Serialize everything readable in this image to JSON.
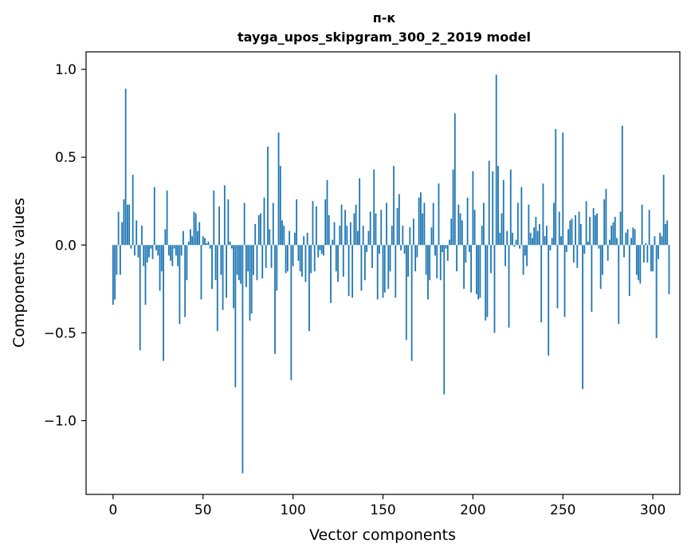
{
  "chart_data": {
    "type": "bar",
    "title": "п-к",
    "subtitle": "tayga_upos_skipgram_300_2_2019 model",
    "xlabel": "Vector components",
    "ylabel": "Components values",
    "xlim": [
      -15,
      315
    ],
    "ylim": [
      -1.42,
      1.1
    ],
    "xticks": [
      0,
      50,
      100,
      150,
      200,
      250,
      300
    ],
    "xtick_labels": [
      "0",
      "50",
      "100",
      "150",
      "200",
      "250",
      "300"
    ],
    "yticks": [
      -1.0,
      -0.5,
      0.0,
      0.5,
      1.0
    ],
    "ytick_labels": [
      "−1.0",
      "−0.5",
      "0.0",
      "0.5",
      "1.0"
    ],
    "grid": false,
    "bar_color": "#1f77b4",
    "series": [
      {
        "values": [
          -0.34,
          -0.31,
          -0.17,
          0.19,
          -0.17,
          0.13,
          0.26,
          0.89,
          0.23,
          0.23,
          -0.02,
          0.4,
          -0.06,
          0.14,
          -0.07,
          -0.6,
          0.11,
          -0.12,
          -0.34,
          -0.1,
          -0.07,
          -0.02,
          -0.08,
          0.33,
          -0.03,
          -0.06,
          -0.26,
          -0.15,
          -0.66,
          0.09,
          0.31,
          -0.06,
          -0.09,
          -0.12,
          -0.02,
          -0.06,
          -0.12,
          -0.45,
          -0.06,
          0.08,
          -0.41,
          -0.2,
          0.02,
          0.09,
          0.05,
          0.19,
          0.18,
          0.08,
          0.13,
          -0.31,
          0.05,
          0.04,
          0.01,
          0.02,
          -0.02,
          -0.25,
          0.31,
          -0.2,
          -0.49,
          0.22,
          -0.17,
          -0.37,
          0.34,
          -0.3,
          0.26,
          0.02,
          -0.02,
          -0.36,
          -0.81,
          -0.17,
          -0.2,
          -0.22,
          -1.3,
          0.24,
          -0.24,
          -0.15,
          -0.43,
          -0.39,
          -0.17,
          0.12,
          -0.2,
          0.17,
          0.18,
          -0.19,
          0.27,
          -0.13,
          0.56,
          0.09,
          -0.13,
          0.24,
          -0.62,
          -0.26,
          0.64,
          0.45,
          0.14,
          0.11,
          -0.16,
          -0.15,
          0.08,
          -0.77,
          -0.12,
          0.07,
          0.26,
          -0.09,
          -0.15,
          -0.18,
          0.05,
          -0.21,
          0.07,
          -0.49,
          -0.16,
          0.25,
          -0.15,
          0.22,
          -0.07,
          -0.03,
          -0.05,
          -0.06,
          0.26,
          0.37,
          0.17,
          -0.33,
          0.03,
          0.13,
          -0.15,
          -0.21,
          0.11,
          0.23,
          -0.18,
          0.2,
          0.11,
          -0.29,
          0.13,
          -0.3,
          0.18,
          0.23,
          0.08,
          0.38,
          -0.26,
          0.11,
          -0.2,
          -0.04,
          0.08,
          0.19,
          -0.13,
          0.43,
          0.18,
          -0.31,
          -0.05,
          0.2,
          -0.3,
          -0.27,
          0.24,
          -0.25,
          -0.15,
          0.11,
          0.45,
          -0.3,
          0.21,
          0.29,
          -0.03,
          0.11,
          -0.05,
          -0.54,
          -0.18,
          0.1,
          -0.66,
          0.15,
          -0.15,
          -0.07,
          0.27,
          0.3,
          0.18,
          0.24,
          -0.17,
          -0.31,
          -0.2,
          0.1,
          0.24,
          -0.06,
          -0.19,
          0.35,
          -0.2,
          -0.04,
          -0.85,
          -0.02,
          -0.09,
          0.03,
          0.15,
          0.43,
          0.75,
          -0.15,
          0.23,
          0.18,
          0.14,
          -0.25,
          -0.1,
          0.27,
          -0.04,
          -0.27,
          0.42,
          0.2,
          -0.28,
          -0.31,
          -0.3,
          0.11,
          0.24,
          -0.43,
          -0.41,
          0.48,
          -0.16,
          0.42,
          -0.5,
          0.97,
          0.45,
          0.07,
          0.18,
          0.37,
          -0.12,
          0.08,
          -0.47,
          0.43,
          0.07,
          -0.01,
          0.03,
          0.24,
          -0.02,
          0.33,
          -0.17,
          -0.06,
          -0.12,
          0.23,
          0.07,
          0.04,
          0.1,
          0.16,
          0.08,
          0.12,
          -0.44,
          0.35,
          0.05,
          0.11,
          -0.63,
          -0.03,
          0.04,
          0.24,
          0.66,
          -0.36,
          0.19,
          0.05,
          0.64,
          -0.41,
          -0.04,
          0.09,
          0.14,
          0.15,
          -0.1,
          0.17,
          -0.13,
          0.19,
          0.12,
          -0.82,
          -0.05,
          0.25,
          0.02,
          0.16,
          -0.38,
          0.21,
          0.17,
          0.18,
          -0.02,
          -0.25,
          -0.17,
          0.26,
          0.32,
          -0.09,
          0.03,
          0.11,
          0.13,
          0.16,
          0.04,
          -0.45,
          0.19,
          0.68,
          -0.07,
          0.07,
          0.09,
          -0.29,
          0.04,
          0.1,
          0.09,
          -0.17,
          -0.2,
          -0.22,
          0.23,
          -0.1,
          0.01,
          -0.1,
          0.2,
          -0.15,
          -0.15,
          0.05,
          -0.53,
          -0.08,
          0.07,
          0.05,
          0.4,
          0.12,
          0.14,
          -0.28
        ]
      }
    ]
  }
}
